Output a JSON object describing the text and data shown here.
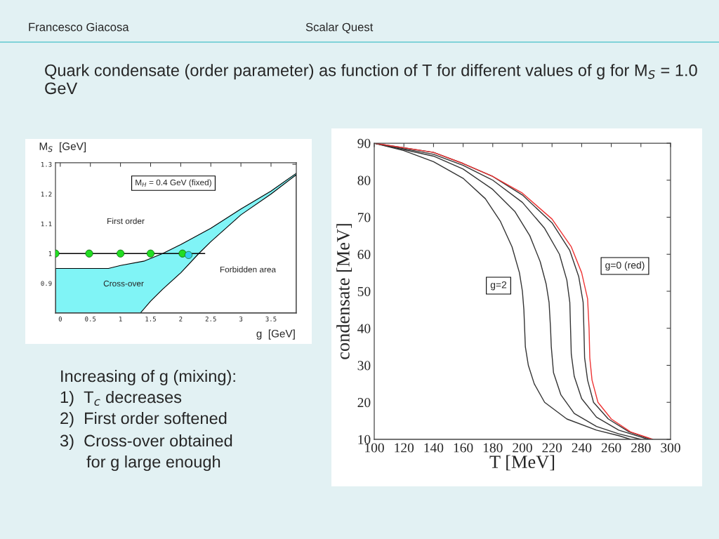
{
  "chart_data": [
    {
      "type": "area",
      "title": "Quark condensate (order parameter) as function of T for different values of g for M$_{S}$ = 1.0 GeV",
      "xlabel": "g  [GeV]",
      "ylabel": "M$_{S}$  [GeV]",
      "xlim": [
        -0.08,
        3.92
      ],
      "ylim": [
        0.8,
        1.305
      ],
      "xticks": [
        0,
        0.5,
        1,
        1.5,
        2,
        2.5,
        3,
        3.5
      ],
      "yticks": [
        0.9,
        1,
        1.1,
        1.2,
        1.3
      ],
      "series": [
        {
          "type": "area",
          "color": "#80f4f6",
          "x": [
            -0.08,
            0.8,
            1.0,
            1.4,
            1.7,
            2.0,
            2.5,
            3.0,
            3.5,
            3.92
          ],
          "values": [
            0.95,
            0.95,
            0.96,
            0.975,
            1.0,
            1.03,
            1.085,
            1.15,
            1.21,
            1.27
          ]
        },
        {
          "type": "area",
          "color": "#ffffff",
          "x": [
            1.33,
            1.5,
            1.7,
            2.0,
            2.3,
            2.5,
            3.0,
            3.5,
            3.92
          ],
          "values": [
            0.8,
            0.84,
            0.88,
            0.935,
            1.0,
            1.04,
            1.13,
            1.2,
            1.265
          ]
        },
        {
          "type": "line",
          "color": "#000000",
          "x": [
            -0.08,
            2.4
          ],
          "values": [
            1,
            1
          ]
        },
        {
          "type": "scatter",
          "color": "#22dd22",
          "x": [
            -0.08,
            0.48,
            1.0,
            1.5,
            2.03
          ],
          "values": [
            1,
            1,
            1,
            1,
            1
          ]
        },
        {
          "type": "scatter",
          "color": "#33ccee",
          "x": [
            2.13
          ],
          "values": [
            0.995
          ]
        }
      ],
      "annotations": [
        "Francesco Giacosa",
        "Scalar Quest",
        "Increasing of g (mixing):",
        "1)  T$_{c}$ decreases",
        "2)  First order softened",
        "3)  Cross-over obtained",
        "for g large enough",
        "M$_{H}$ = 0.4 GeV (fixed)",
        "First order",
        "Cross-over",
        "Forbidden area"
      ]
    },
    {
      "type": "line",
      "xlabel": "T [MeV]",
      "ylabel": "condensate [MeV]",
      "xlim": [
        100,
        300
      ],
      "ylim": [
        10,
        90
      ],
      "xticks": [
        100,
        120,
        140,
        160,
        180,
        200,
        220,
        240,
        260,
        280,
        300
      ],
      "yticks": [
        10,
        20,
        30,
        40,
        50,
        60,
        70,
        80,
        90
      ],
      "series": [
        {
          "color": "#333333",
          "x": [
            100,
            120,
            140,
            160,
            175,
            185,
            193,
            198,
            200,
            201,
            201.5,
            202,
            204,
            208,
            215,
            230,
            250,
            265,
            273
          ],
          "values": [
            90,
            88,
            85,
            80.5,
            75,
            69,
            62,
            55,
            50,
            45,
            40,
            35,
            30,
            25,
            20,
            15.5,
            12.5,
            11,
            10
          ]
        },
        {
          "color": "#333333",
          "x": [
            100,
            140,
            160,
            180,
            195,
            205,
            212,
            216,
            218,
            219,
            219.5,
            221,
            226,
            235,
            250,
            265,
            280
          ],
          "values": [
            90,
            86.5,
            83,
            77.5,
            71.5,
            65,
            58,
            52,
            47,
            40,
            35,
            28,
            22,
            17,
            13.5,
            11.5,
            10
          ]
        },
        {
          "color": "#333333",
          "x": [
            100,
            140,
            160,
            180,
            200,
            215,
            225,
            230,
            232,
            232.5,
            233,
            235,
            240,
            250,
            265,
            285
          ],
          "values": [
            90,
            87,
            84,
            80,
            74,
            67,
            60,
            53,
            47,
            40,
            33,
            27,
            21,
            16,
            12.5,
            10
          ]
        },
        {
          "color": "#333333",
          "x": [
            100,
            140,
            160,
            180,
            200,
            220,
            232,
            238,
            241,
            241.5,
            242,
            244,
            248,
            258,
            272,
            287
          ],
          "values": [
            90,
            87.5,
            84.5,
            81,
            76,
            68.5,
            61,
            54,
            47,
            40,
            32,
            26,
            20,
            15.5,
            12,
            10
          ]
        },
        {
          "color": "#ee3333",
          "x": [
            100,
            140,
            160,
            180,
            200,
            220,
            233,
            240,
            244,
            245,
            245.5,
            247,
            251,
            260,
            273,
            288
          ],
          "values": [
            90,
            87.5,
            84.5,
            81,
            76.5,
            69.5,
            62,
            55,
            48,
            40,
            32,
            26,
            20,
            15.5,
            12,
            10
          ]
        }
      ],
      "annotations": [
        "g=2",
        "g=0 (red)"
      ]
    }
  ]
}
